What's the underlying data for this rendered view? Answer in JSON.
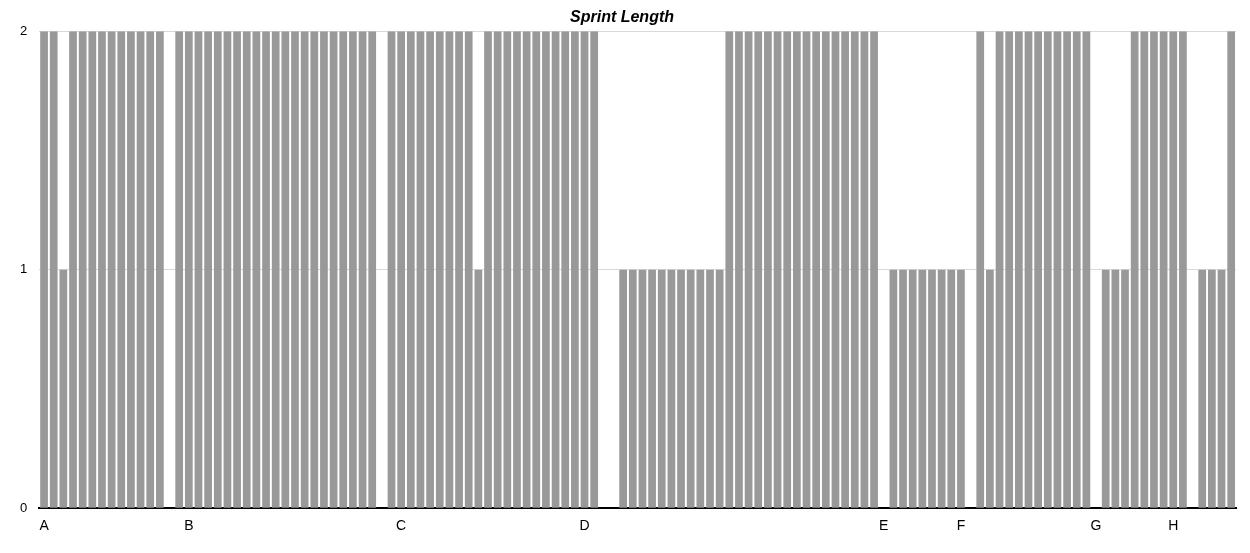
{
  "chart_data": {
    "type": "bar",
    "title": "Sprint Length",
    "categories": [
      "A",
      null,
      null,
      null,
      null,
      null,
      null,
      null,
      null,
      null,
      null,
      null,
      null,
      null,
      null,
      "B",
      null,
      null,
      null,
      null,
      null,
      null,
      null,
      null,
      null,
      null,
      null,
      null,
      null,
      null,
      null,
      null,
      null,
      null,
      null,
      null,
      null,
      "C",
      null,
      null,
      null,
      null,
      null,
      null,
      null,
      null,
      null,
      null,
      null,
      null,
      null,
      null,
      null,
      null,
      null,
      null,
      "D",
      null,
      null,
      null,
      null,
      null,
      null,
      null,
      null,
      null,
      null,
      null,
      null,
      null,
      null,
      null,
      null,
      null,
      null,
      null,
      null,
      null,
      null,
      null,
      null,
      null,
      null,
      null,
      null,
      null,
      null,
      "E",
      null,
      null,
      null,
      null,
      null,
      null,
      null,
      "F",
      null,
      null,
      null,
      null,
      null,
      null,
      null,
      null,
      null,
      null,
      null,
      null,
      null,
      "G",
      null,
      null,
      null,
      null,
      null,
      null,
      null,
      "H",
      null,
      null,
      null,
      null,
      null,
      null
    ],
    "values": [
      2,
      2,
      1,
      2,
      2,
      2,
      2,
      2,
      2,
      2,
      2,
      2,
      2,
      0,
      2,
      2,
      2,
      2,
      2,
      2,
      2,
      2,
      2,
      2,
      2,
      2,
      2,
      2,
      2,
      2,
      2,
      2,
      2,
      2,
      2,
      0,
      2,
      2,
      2,
      2,
      2,
      2,
      2,
      2,
      2,
      1,
      2,
      2,
      2,
      2,
      2,
      2,
      2,
      2,
      2,
      2,
      2,
      2,
      0,
      0,
      1,
      1,
      1,
      1,
      1,
      1,
      1,
      1,
      1,
      1,
      1,
      2,
      2,
      2,
      2,
      2,
      2,
      2,
      2,
      2,
      2,
      2,
      2,
      2,
      2,
      2,
      2,
      0,
      1,
      1,
      1,
      1,
      1,
      1,
      1,
      1,
      0,
      2,
      1,
      2,
      2,
      2,
      2,
      2,
      2,
      2,
      2,
      2,
      2,
      0,
      1,
      1,
      1,
      2,
      2,
      2,
      2,
      2,
      2,
      0,
      1,
      1,
      1,
      2
    ],
    "color": "#999999",
    "ylim": [
      0,
      2
    ],
    "yticks": [
      0,
      1,
      2
    ],
    "grid": "y"
  }
}
